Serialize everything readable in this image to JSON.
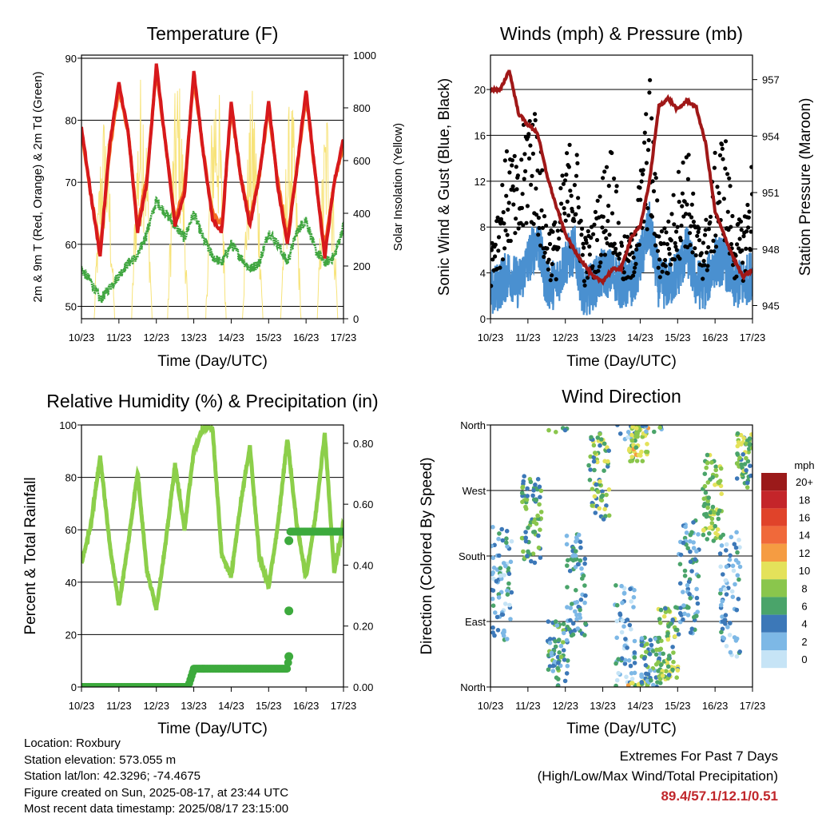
{
  "colors": {
    "temp_2m": "#d7191c",
    "temp_9m": "#f46d22",
    "dewpoint": "#40a640",
    "solar": "#f7e37a",
    "wind": "#4a90d0",
    "gust": "#000000",
    "pressure": "#a01818",
    "rh": "#8ccf4a",
    "precip": "#3daa3d",
    "extremes": "#c0262b"
  },
  "x_tick_labels": [
    "10/23",
    "11/23",
    "12/23",
    "13/23",
    "14/23",
    "15/23",
    "16/23",
    "17/23"
  ],
  "chart_data": [
    {
      "id": "temperature",
      "type": "line",
      "title": "Temperature (F)",
      "xlabel": "Time (Day/UTC)",
      "ylabel": "2m & 9m T (Red, Orange) & 2m Td (Green)",
      "ylabel_right": "Solar Insolation (Yellow)",
      "ylim": [
        48,
        90.5
      ],
      "yticks": [
        50,
        60,
        70,
        80,
        90
      ],
      "ylim_right": [
        0,
        1000
      ],
      "yticks_right": [
        0,
        200,
        400,
        600,
        800,
        1000
      ],
      "x": [
        0,
        0.25,
        0.5,
        0.75,
        1,
        1.25,
        1.5,
        1.75,
        2,
        2.25,
        2.5,
        2.75,
        3,
        3.25,
        3.5,
        3.75,
        4,
        4.25,
        4.5,
        4.75,
        5,
        5.25,
        5.5,
        5.75,
        6,
        6.25,
        6.5,
        6.75,
        7
      ],
      "series": [
        {
          "name": "2m T",
          "values": [
            79,
            68,
            58,
            76,
            86,
            78,
            62,
            70,
            89,
            76,
            63,
            68,
            88,
            75,
            64,
            62,
            83,
            71,
            63,
            71,
            83,
            69,
            60,
            72,
            85,
            71,
            58,
            70,
            77
          ]
        },
        {
          "name": "9m T",
          "values": [
            78,
            68,
            59,
            75,
            85,
            78,
            63,
            71,
            88,
            76,
            64,
            69,
            87,
            75,
            65,
            63,
            82,
            71,
            64,
            71,
            82,
            70,
            61,
            72,
            84,
            71,
            59,
            70,
            76
          ]
        },
        {
          "name": "2m Td",
          "values": [
            56,
            54,
            51,
            53,
            55,
            57,
            58,
            62,
            67,
            65,
            63,
            61,
            65,
            61,
            58,
            57,
            60,
            58,
            56,
            57,
            62,
            60,
            57,
            62,
            64,
            59,
            57,
            58,
            63
          ]
        },
        {
          "name": "Solar",
          "axis": "right",
          "peaks": [
            0.62,
            1.62,
            2.58,
            3.6,
            4.58,
            5.6,
            6.58
          ],
          "peak_values": [
            810,
            960,
            950,
            1000,
            880,
            850,
            840
          ]
        }
      ]
    },
    {
      "id": "winds",
      "type": "line",
      "title": "Winds (mph) & Pressure (mb)",
      "xlabel": "Time (Day/UTC)",
      "ylabel": "Sonic Wind & Gust (Blue, Black)",
      "ylabel_right": "Station Pressure (Maroon)",
      "ylim": [
        0,
        23
      ],
      "yticks": [
        0,
        4,
        8,
        12,
        16,
        20
      ],
      "ylim_right": [
        944.3,
        958.3
      ],
      "yticks_right": [
        945,
        948,
        951,
        954,
        957
      ],
      "x": [
        0,
        0.25,
        0.5,
        0.75,
        1,
        1.25,
        1.5,
        1.75,
        2,
        2.25,
        2.5,
        2.75,
        3,
        3.25,
        3.5,
        3.75,
        4,
        4.25,
        4.5,
        4.75,
        5,
        5.25,
        5.5,
        5.75,
        6,
        6.25,
        6.5,
        6.75,
        7
      ],
      "series": [
        {
          "name": "Wind",
          "values": [
            2,
            3,
            4,
            3,
            5,
            7,
            3,
            3,
            5,
            6,
            2,
            3,
            4,
            4,
            3,
            3,
            5,
            8,
            3,
            3,
            4,
            6,
            3,
            3,
            5,
            5,
            3,
            3,
            4
          ]
        },
        {
          "name": "Gust",
          "values": [
            5,
            8,
            11,
            9,
            14,
            13,
            6,
            6,
            10,
            12,
            5,
            6,
            9,
            11,
            5,
            5,
            9,
            15,
            6,
            6,
            9,
            11,
            6,
            6,
            10,
            12,
            6,
            6,
            10
          ]
        },
        {
          "name": "Pressure",
          "axis": "right",
          "values": [
            956.5,
            956.4,
            957.5,
            955.2,
            954.6,
            954.2,
            952.0,
            950.3,
            948.8,
            947.9,
            947.2,
            946.5,
            946.3,
            946.9,
            947.0,
            948.6,
            949.2,
            951.6,
            955.6,
            956.0,
            955.4,
            955.9,
            955.5,
            953.6,
            950.0,
            948.7,
            947.5,
            946.5,
            946.9
          ]
        }
      ]
    },
    {
      "id": "humidity",
      "type": "line",
      "title": "Relative Humidity (%) & Precipitation (in)",
      "xlabel": "Time (Day/UTC)",
      "ylabel": "Percent & Total Rainfall",
      "ylim": [
        0,
        100
      ],
      "yticks": [
        0,
        20,
        40,
        60,
        80,
        100
      ],
      "ylim_right": [
        0,
        0.86
      ],
      "yticks_right": [
        0.0,
        0.2,
        0.4,
        0.6,
        0.8
      ],
      "x": [
        0,
        0.25,
        0.5,
        0.75,
        1,
        1.25,
        1.5,
        1.75,
        2,
        2.25,
        2.5,
        2.75,
        3,
        3.25,
        3.5,
        3.75,
        4,
        4.25,
        4.5,
        4.75,
        5,
        5.25,
        5.5,
        5.75,
        6,
        6.25,
        6.5,
        6.75,
        7
      ],
      "series": [
        {
          "name": "RH",
          "values": [
            47,
            62,
            88,
            55,
            31,
            55,
            82,
            44,
            30,
            55,
            85,
            60,
            90,
            99,
            99,
            50,
            42,
            70,
            92,
            50,
            38,
            62,
            95,
            62,
            42,
            65,
            97,
            44,
            62
          ]
        },
        {
          "name": "Precip",
          "axis": "right",
          "points": [
            [
              0,
              0.0
            ],
            [
              2.85,
              0.0
            ],
            [
              2.95,
              0.04
            ],
            [
              3.0,
              0.06
            ],
            [
              5.5,
              0.06
            ],
            [
              5.52,
              0.08
            ],
            [
              5.53,
              0.1
            ],
            [
              5.54,
              0.25
            ],
            [
              5.55,
              0.48
            ],
            [
              5.56,
              0.51
            ],
            [
              7,
              0.51
            ]
          ]
        }
      ]
    },
    {
      "id": "direction",
      "type": "scatter",
      "title": "Wind Direction",
      "xlabel": "Time (Day/UTC)",
      "ylabel": "Direction (Colored By Speed)",
      "ylim": [
        0,
        360
      ],
      "yticks": [
        0,
        90,
        180,
        270,
        360
      ],
      "ytick_labels": [
        "North",
        "East",
        "South",
        "West",
        "North"
      ],
      "colorbar_title": "mph",
      "colorbar_labels": [
        "20+",
        "18",
        "16",
        "14",
        "12",
        "10",
        "8",
        "6",
        "4",
        "2",
        "0"
      ],
      "colorbar_colors": [
        "#9b1a1a",
        "#c4252a",
        "#e0432a",
        "#f0693a",
        "#f59c42",
        "#e4e25a",
        "#8ac64c",
        "#4aa46a",
        "#3c78b8",
        "#7db8e6",
        "#c6e4f6"
      ],
      "clusters": [
        {
          "x": 0.3,
          "dir": 140,
          "spread": 80,
          "speed": 3
        },
        {
          "x": 1.1,
          "dir": 230,
          "spread": 60,
          "speed": 6
        },
        {
          "x": 1.8,
          "dir": 40,
          "spread": 50,
          "speed": 5
        },
        {
          "x": 2.3,
          "dir": 140,
          "spread": 70,
          "speed": 4
        },
        {
          "x": 2.9,
          "dir": 290,
          "spread": 60,
          "speed": 7
        },
        {
          "x": 3.6,
          "dir": 60,
          "spread": 80,
          "speed": 3
        },
        {
          "x": 3.95,
          "dir": 340,
          "spread": 30,
          "speed": 9
        },
        {
          "x": 4.3,
          "dir": 30,
          "spread": 40,
          "speed": 5
        },
        {
          "x": 4.75,
          "dir": 60,
          "spread": 50,
          "speed": 7
        },
        {
          "x": 5.3,
          "dir": 150,
          "spread": 80,
          "speed": 4
        },
        {
          "x": 5.95,
          "dir": 260,
          "spread": 60,
          "speed": 8
        },
        {
          "x": 6.4,
          "dir": 130,
          "spread": 90,
          "speed": 3
        },
        {
          "x": 6.85,
          "dir": 310,
          "spread": 40,
          "speed": 7
        }
      ]
    }
  ],
  "footer": {
    "location": "Location: Roxbury",
    "elevation": "Station elevation: 573.055 m",
    "latlon": "Station lat/lon: 42.3296; -74.4675",
    "created": "Figure created on Sun, 2025-08-17, at 23:44 UTC",
    "recent": "Most recent data timestamp: 2025/08/17 23:15:00",
    "extremes_title": "Extremes For Past 7 Days",
    "extremes_sub": "(High/Low/Max Wind/Total Precipitation)",
    "extremes_value": "89.4/57.1/12.1/0.51"
  }
}
